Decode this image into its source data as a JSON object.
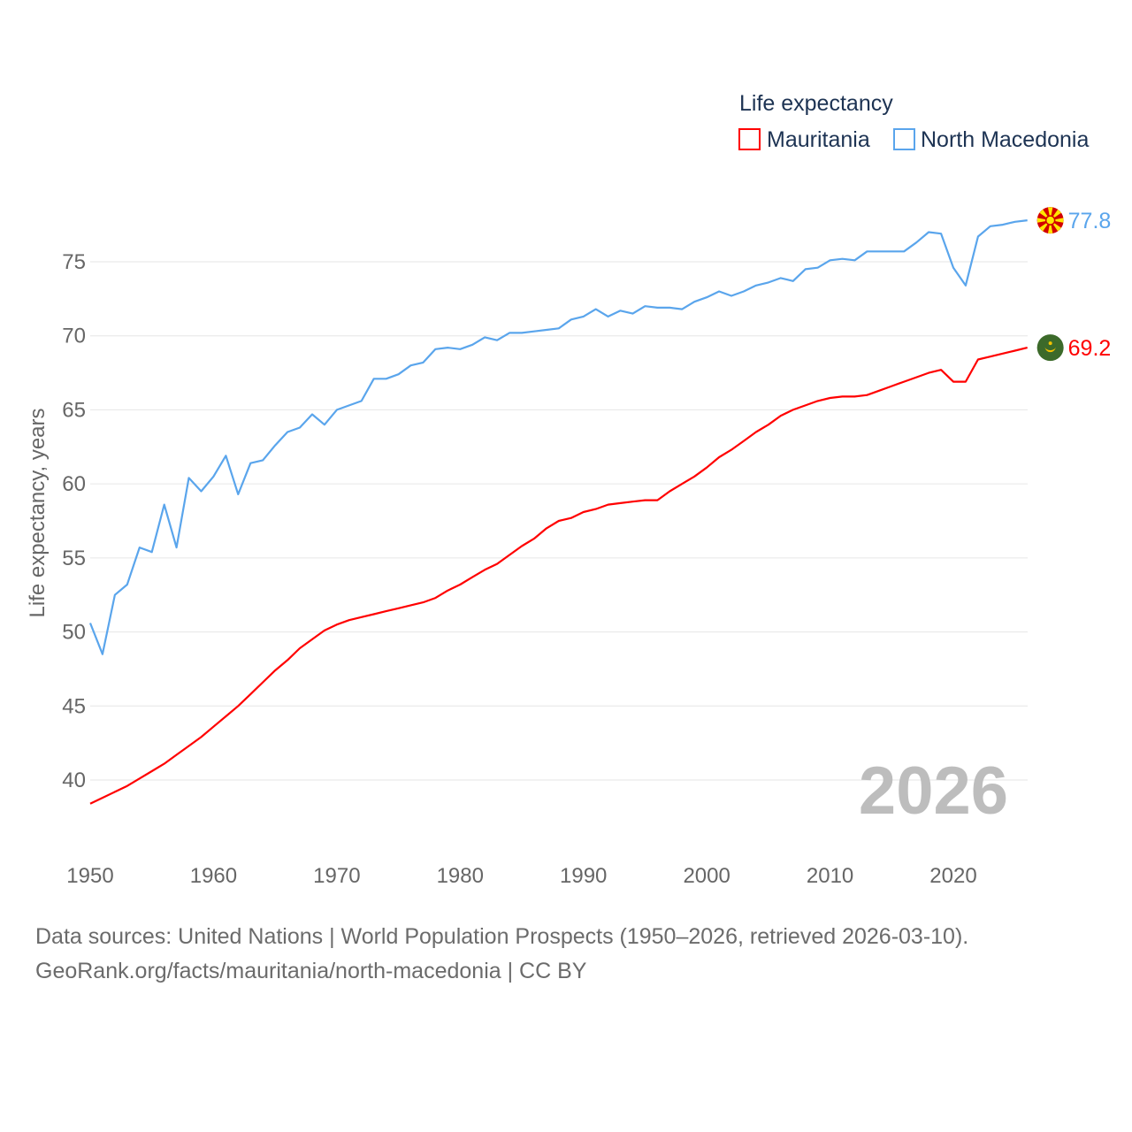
{
  "chart_data": {
    "type": "line",
    "title": "",
    "legend_title": "Life expectancy",
    "legend_position": "top-right",
    "xlabel": "",
    "ylabel": "Life expectancy, years",
    "xlim": [
      1950,
      2026
    ],
    "ylim": [
      36,
      80
    ],
    "x_ticks": [
      1950,
      1960,
      1970,
      1980,
      1990,
      2000,
      2010,
      2020
    ],
    "y_ticks": [
      40,
      45,
      50,
      55,
      60,
      65,
      70,
      75
    ],
    "grid": true,
    "year_label": "2026",
    "x": [
      1950,
      1951,
      1952,
      1953,
      1954,
      1955,
      1956,
      1957,
      1958,
      1959,
      1960,
      1961,
      1962,
      1963,
      1964,
      1965,
      1966,
      1967,
      1968,
      1969,
      1970,
      1971,
      1972,
      1973,
      1974,
      1975,
      1976,
      1977,
      1978,
      1979,
      1980,
      1981,
      1982,
      1983,
      1984,
      1985,
      1986,
      1987,
      1988,
      1989,
      1990,
      1991,
      1992,
      1993,
      1994,
      1995,
      1996,
      1997,
      1998,
      1999,
      2000,
      2001,
      2002,
      2003,
      2004,
      2005,
      2006,
      2007,
      2008,
      2009,
      2010,
      2011,
      2012,
      2013,
      2014,
      2015,
      2016,
      2017,
      2018,
      2019,
      2020,
      2021,
      2022,
      2023,
      2024,
      2025,
      2026
    ],
    "series": [
      {
        "name": "Mauritania",
        "color": "#ff0000",
        "end_label": "69.2",
        "values": [
          38.4,
          38.8,
          39.2,
          39.6,
          40.1,
          40.6,
          41.1,
          41.7,
          42.3,
          42.9,
          43.6,
          44.3,
          45.0,
          45.8,
          46.6,
          47.4,
          48.1,
          48.9,
          49.5,
          50.1,
          50.5,
          50.8,
          51.0,
          51.2,
          51.4,
          51.6,
          51.8,
          52.0,
          52.3,
          52.8,
          53.2,
          53.7,
          54.2,
          54.6,
          55.2,
          55.8,
          56.3,
          57.0,
          57.5,
          57.7,
          58.1,
          58.3,
          58.6,
          58.7,
          58.8,
          58.9,
          58.9,
          59.5,
          60.0,
          60.5,
          61.1,
          61.8,
          62.3,
          62.9,
          63.5,
          64.0,
          64.6,
          65.0,
          65.3,
          65.6,
          65.8,
          65.9,
          65.9,
          66.0,
          66.3,
          66.6,
          66.9,
          67.2,
          67.5,
          67.7,
          66.9,
          66.9,
          68.4,
          68.6,
          68.8,
          69.0,
          69.2
        ]
      },
      {
        "name": "North Macedonia",
        "color": "#5aa5ec",
        "end_label": "77.8",
        "values": [
          50.6,
          48.5,
          52.5,
          53.2,
          55.7,
          55.4,
          58.6,
          55.7,
          60.4,
          59.5,
          60.5,
          61.9,
          59.3,
          61.4,
          61.6,
          62.6,
          63.5,
          63.8,
          64.7,
          64.0,
          65.0,
          65.3,
          65.6,
          67.1,
          67.1,
          67.4,
          68.0,
          68.2,
          69.1,
          69.2,
          69.1,
          69.4,
          69.9,
          69.7,
          70.2,
          70.2,
          70.3,
          70.4,
          70.5,
          71.1,
          71.3,
          71.8,
          71.3,
          71.7,
          71.5,
          72.0,
          71.9,
          71.9,
          71.8,
          72.3,
          72.6,
          73.0,
          72.7,
          73.0,
          73.4,
          73.6,
          73.9,
          73.7,
          74.5,
          74.6,
          75.1,
          75.2,
          75.1,
          75.7,
          75.7,
          75.7,
          75.7,
          76.3,
          77.0,
          76.9,
          74.6,
          73.4,
          76.7,
          77.4,
          77.5,
          77.7,
          77.8
        ]
      }
    ]
  },
  "footer": {
    "line1": "Data sources: United Nations | World Population Prospects (1950–2026, retrieved 2026-03-10).",
    "line2": "GeoRank.org/facts/mauritania/north-macedonia | CC BY"
  }
}
